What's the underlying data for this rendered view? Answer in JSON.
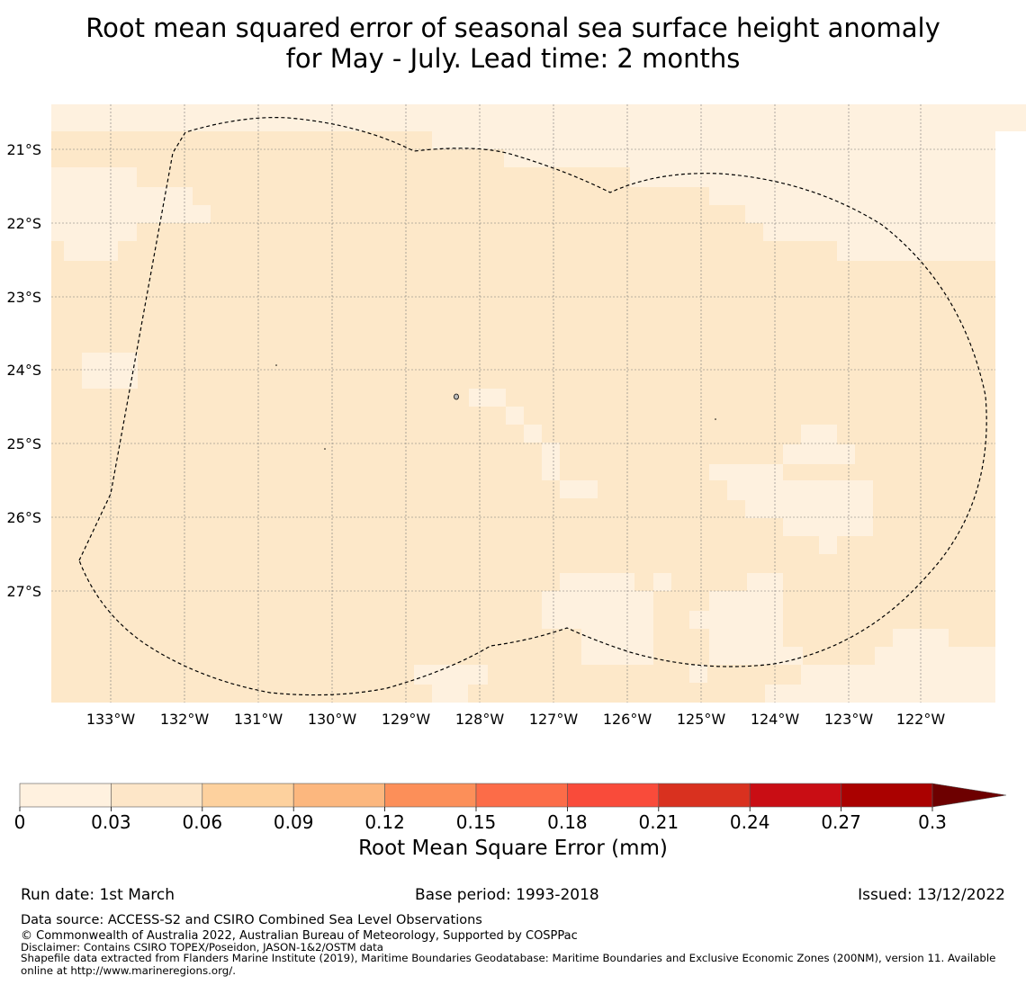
{
  "title_line1": "Root mean squared error of seasonal sea surface height anomaly",
  "title_line2": "for May - July. Lead time: 2 months",
  "map": {
    "lon_ticks": [
      "133°W",
      "132°W",
      "131°W",
      "130°W",
      "129°W",
      "128°W",
      "127°W",
      "126°W",
      "125°W",
      "124°W",
      "123°W",
      "122°W"
    ],
    "lat_ticks": [
      "21°S",
      "22°S",
      "23°S",
      "24°S",
      "25°S",
      "26°S",
      "27°S"
    ],
    "colors": {
      "background": "#fde8c9",
      "low_band": "#fef1df",
      "boundary": "#000000",
      "island": "#bbbbbb"
    }
  },
  "colorbar": {
    "title": "Root Mean Square Error (mm)",
    "ticks": [
      "0",
      "0.03",
      "0.06",
      "0.09",
      "0.12",
      "0.15",
      "0.18",
      "0.21",
      "0.24",
      "0.27",
      "0.3"
    ],
    "colors": [
      "#fff1df",
      "#fde6c8",
      "#fdd19e",
      "#fcb77e",
      "#fc8f59",
      "#fc6c48",
      "#f94b3a",
      "#d9311f",
      "#c90d14",
      "#aa0100",
      "#6d0000"
    ]
  },
  "footer": {
    "run_date": "Run date: 1st March",
    "base_period": "Base period: 1993-2018",
    "issued": "Issued: 13/12/2022",
    "data_source": "Data source: ACCESS-S2 and CSIRO Combined Sea Level Observations",
    "copyright": "© Commonwealth of Australia 2022, Australian Bureau of Meteorology, Supported by COSPPac",
    "disclaimer": "Disclaimer: Contains CSIRO TOPEX/Poseidon, JASON-1&2/OSTM data",
    "shapefile": "Shapefile data extracted from Flanders Marine Institute (2019), Maritime Boundaries Geodatabase: Maritime Boundaries and Exclusive Economic Zones (200NM), version 11. Available online at http://www.marineregions.org/."
  }
}
